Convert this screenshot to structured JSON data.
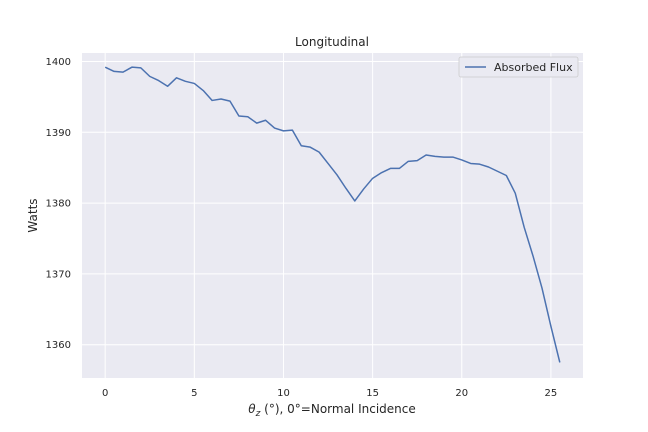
{
  "chart_data": {
    "type": "line",
    "title": "Longitudinal",
    "xlabel_symbol": "θ",
    "xlabel_subscript": "z",
    "xlabel_rest": " (°), 0°=Normal Incidence",
    "ylabel": "Watts",
    "xlim": [
      -1.3,
      26.8
    ],
    "ylim": [
      1355.3,
      1401.2
    ],
    "xticks": [
      0,
      5,
      10,
      15,
      20,
      25
    ],
    "yticks": [
      1360,
      1370,
      1380,
      1390,
      1400
    ],
    "grid": true,
    "legend_position": "upper right",
    "colors": {
      "background": "#eaeaf2",
      "line": "#4c72b0",
      "grid": "#ffffff"
    },
    "series": [
      {
        "name": "Absorbed Flux",
        "x": [
          0,
          0.5,
          1,
          1.5,
          2,
          2.5,
          3,
          3.5,
          4,
          4.5,
          5,
          5.5,
          6,
          6.5,
          7,
          7.5,
          8,
          8.5,
          9,
          9.5,
          10,
          10.5,
          11,
          11.5,
          12,
          12.5,
          13,
          13.5,
          14,
          14.5,
          15,
          15.5,
          16,
          16.5,
          17,
          17.5,
          18,
          18.5,
          19,
          19.5,
          20,
          20.5,
          21,
          21.5,
          22,
          22.5,
          23,
          23.5,
          24,
          24.5,
          25,
          25.5
        ],
        "y": [
          1399.2,
          1398.6,
          1398.5,
          1399.2,
          1399.1,
          1397.9,
          1397.3,
          1396.5,
          1397.7,
          1397.2,
          1396.9,
          1395.9,
          1394.5,
          1394.7,
          1394.4,
          1392.3,
          1392.2,
          1391.3,
          1391.7,
          1390.6,
          1390.2,
          1390.3,
          1388.1,
          1387.9,
          1387.2,
          1385.6,
          1384.0,
          1382.1,
          1380.3,
          1382.0,
          1383.5,
          1384.3,
          1384.9,
          1384.9,
          1385.9,
          1386.0,
          1386.8,
          1386.6,
          1386.5,
          1386.5,
          1386.1,
          1385.6,
          1385.5,
          1385.1,
          1384.5,
          1383.9,
          1381.4,
          1376.6,
          1372.5,
          1368.0,
          1362.6,
          1357.5
        ]
      }
    ]
  }
}
